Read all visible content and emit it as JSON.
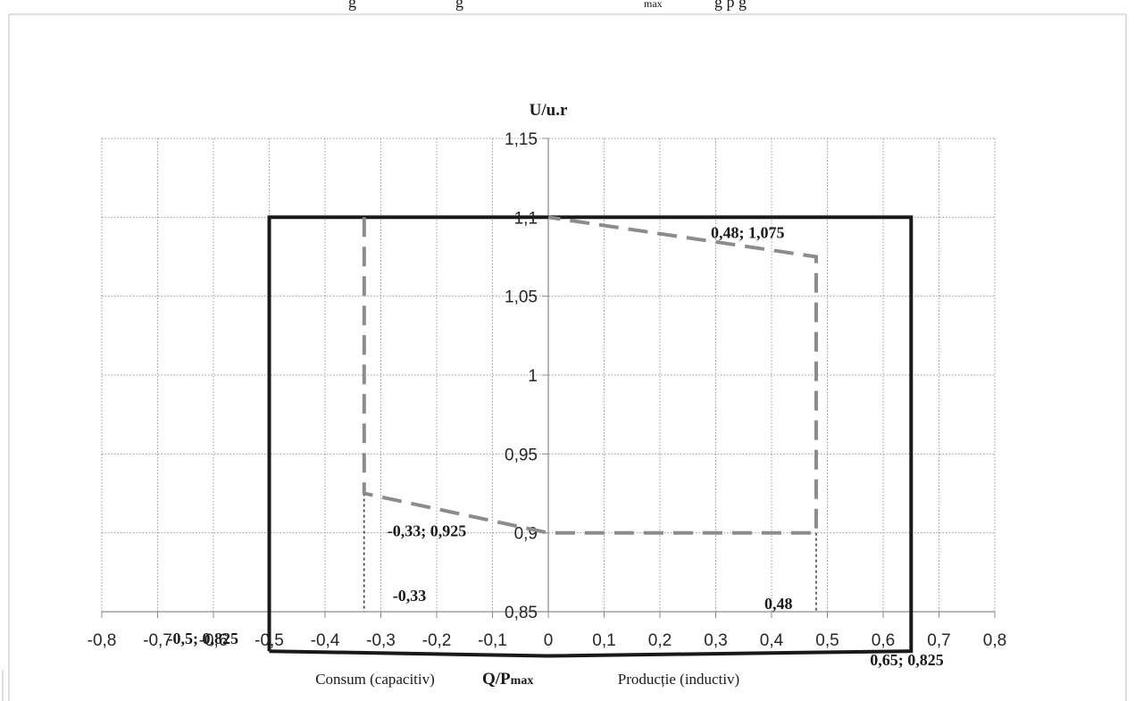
{
  "header_fragment": {
    "text": "g",
    "text2": "g",
    "max": "max",
    "text3": "g p g"
  },
  "chart_data": {
    "type": "line",
    "xlim": [
      -0.8,
      0.8
    ],
    "ylim": [
      0.85,
      1.15
    ],
    "x_step": 0.1,
    "y_ticks": [
      0.85,
      0.9,
      0.95,
      1,
      1.05,
      1.1,
      1.15
    ],
    "x_tick_labels": [
      "-0,8",
      "-0,7",
      "-0,6",
      "-0,5",
      "-0,4",
      "-0,3",
      "-0,2",
      "-0,1",
      "0",
      "0,1",
      "0,2",
      "0,3",
      "0,4",
      "0,5",
      "0,6",
      "0,7",
      "0,8"
    ],
    "y_tick_labels": [
      "0,85",
      "0,9",
      "0,95",
      "1",
      "1,05",
      "1,1",
      "1,15"
    ],
    "grid": true,
    "y_axis_title": "U/u.r",
    "x_axis_title": {
      "left": "Consum (capacitiv)",
      "center_main": "Q/P",
      "center_sub": "max",
      "right": "Producție (inductiv)"
    },
    "series": [
      {
        "style": "solid-black",
        "color": "#1a1a1a",
        "points": [
          [
            -0.5,
            0.825
          ],
          [
            -0.5,
            1.1
          ],
          [
            0.65,
            1.1
          ],
          [
            0.65,
            0.825
          ],
          [
            0,
            0.822
          ],
          [
            -0.5,
            0.825
          ]
        ]
      },
      {
        "style": "dashed-gray",
        "color": "#8c8c8c",
        "points": [
          [
            -0.33,
            1.1
          ],
          [
            -0.33,
            0.925
          ],
          [
            0,
            0.9
          ],
          [
            0.48,
            0.9
          ],
          [
            0.48,
            1.075
          ],
          [
            0,
            1.1
          ]
        ]
      }
    ],
    "annotations": [
      {
        "text": "0,48; 1,075",
        "x": 0.48,
        "y": 1.075
      },
      {
        "text": "-0,33; 0,925",
        "x": -0.33,
        "y": 0.925
      },
      {
        "text": "-0,5; 0,825",
        "x": -0.5,
        "y": 0.825
      },
      {
        "text": "0,65; 0,825",
        "x": 0.65,
        "y": 0.825
      },
      {
        "text": "-0,33",
        "x": -0.33,
        "y": 0.85
      },
      {
        "text": "0,48",
        "x": 0.48,
        "y": 0.85
      }
    ],
    "markers": [
      {
        "x": -0.33,
        "from_y": 0.925,
        "to_y": 0.85
      },
      {
        "x": 0.48,
        "from_y": 0.9,
        "to_y": 0.85
      }
    ]
  }
}
